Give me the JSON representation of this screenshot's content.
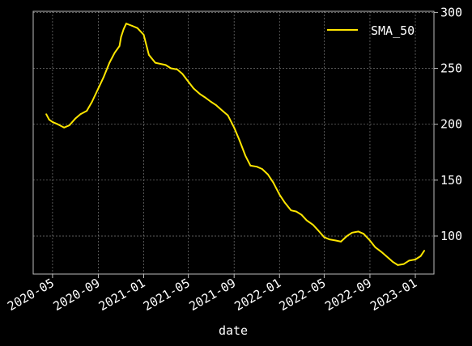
{
  "chart_data": {
    "type": "line",
    "xlabel": "date",
    "ylabel": "",
    "x_ticks": [
      "2020-05",
      "2020-09",
      "2021-01",
      "2021-05",
      "2021-09",
      "2022-01",
      "2022-05",
      "2022-09",
      "2023-01"
    ],
    "y_ticks": [
      100,
      150,
      200,
      250,
      300
    ],
    "ylim": [
      66,
      301
    ],
    "xlim": [
      "2020-03-10",
      "2023-02-20"
    ],
    "y_axis_side": "right",
    "grid": true,
    "legend_position": "top-right",
    "colors": {
      "background": "#000000",
      "line": "#ffe600",
      "grid": "#7a7a7a",
      "axes": "#bdbdbd",
      "text": "#ffffff"
    },
    "series": [
      {
        "name": "SMA_50",
        "x": [
          "2020-04-14",
          "2020-04-22",
          "2020-05-01",
          "2020-05-15",
          "2020-06-01",
          "2020-06-15",
          "2020-07-01",
          "2020-07-15",
          "2020-08-01",
          "2020-08-15",
          "2020-09-01",
          "2020-09-15",
          "2020-10-01",
          "2020-10-15",
          "2020-10-28",
          "2020-11-01",
          "2020-11-08",
          "2020-11-15",
          "2020-12-01",
          "2020-12-15",
          "2021-01-01",
          "2021-01-15",
          "2021-02-01",
          "2021-02-15",
          "2021-03-01",
          "2021-03-15",
          "2021-04-01",
          "2021-04-15",
          "2021-05-01",
          "2021-05-15",
          "2021-06-01",
          "2021-06-15",
          "2021-07-01",
          "2021-07-15",
          "2021-08-01",
          "2021-08-15",
          "2021-09-01",
          "2021-09-15",
          "2021-10-01",
          "2021-10-15",
          "2021-11-01",
          "2021-11-15",
          "2021-12-01",
          "2021-12-15",
          "2022-01-01",
          "2022-01-15",
          "2022-02-01",
          "2022-02-15",
          "2022-03-01",
          "2022-03-15",
          "2022-04-01",
          "2022-04-15",
          "2022-05-01",
          "2022-05-15",
          "2022-06-01",
          "2022-06-15",
          "2022-07-01",
          "2022-07-15",
          "2022-08-01",
          "2022-08-15",
          "2022-09-01",
          "2022-09-15",
          "2022-10-01",
          "2022-10-15",
          "2022-11-01",
          "2022-11-15",
          "2022-12-01",
          "2022-12-15",
          "2023-01-01",
          "2023-01-15",
          "2023-01-25"
        ],
        "y": [
          209,
          204,
          202,
          200,
          197,
          199,
          205,
          209,
          212,
          220,
          232,
          242,
          255,
          264,
          270,
          278,
          285,
          290,
          288,
          286,
          280,
          262,
          255,
          254,
          253,
          250,
          249,
          245,
          238,
          232,
          227,
          224,
          220,
          217,
          212,
          208,
          197,
          186,
          172,
          163,
          162,
          160,
          155,
          148,
          137,
          130,
          123,
          122,
          119,
          114,
          110,
          105,
          99,
          97,
          96,
          95,
          100,
          103,
          104,
          102,
          96,
          90,
          86,
          82,
          77,
          74,
          75,
          78,
          79,
          82,
          87
        ]
      }
    ]
  }
}
